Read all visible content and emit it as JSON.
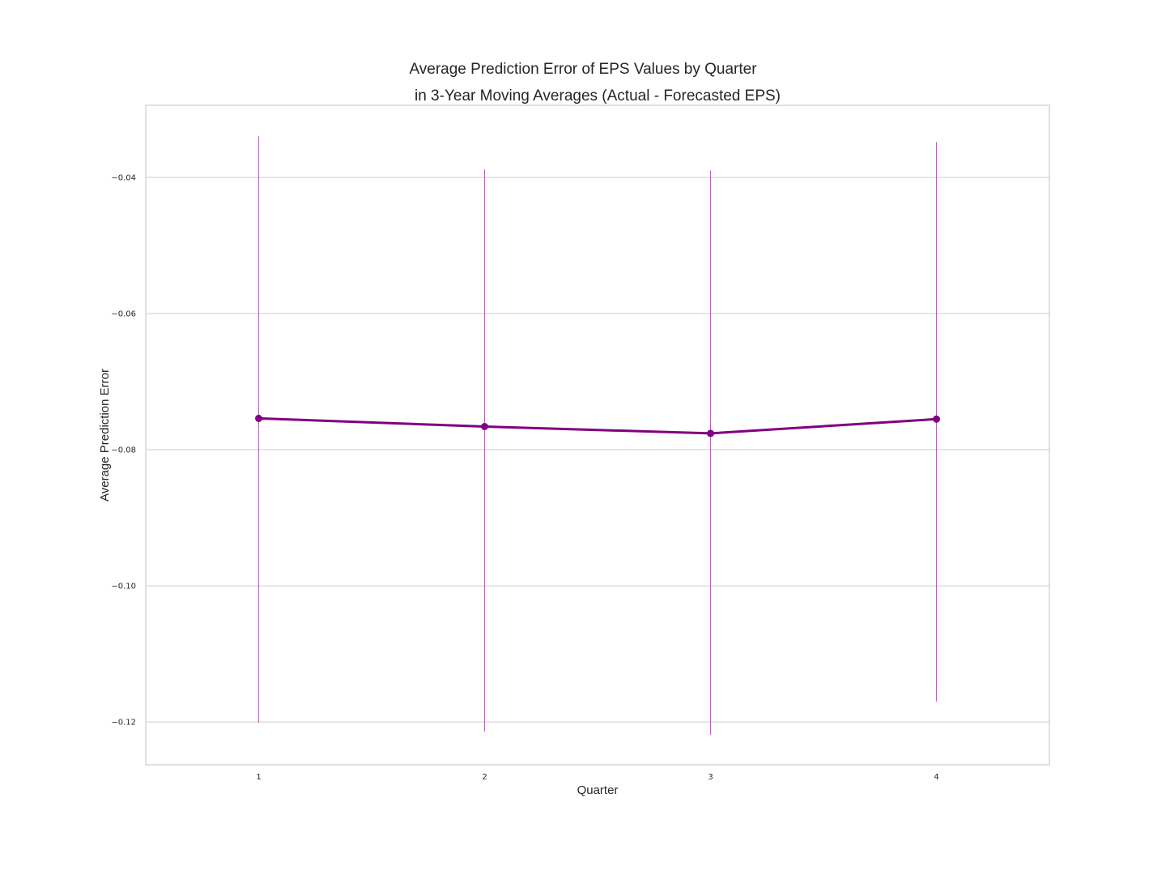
{
  "chart_data": {
    "type": "line",
    "title": "Average Prediction Error of EPS Values by Quarter",
    "subtitle": "in 3-Year Moving Averages (Actual - Forecasted EPS)",
    "xlabel": "Quarter",
    "ylabel": "Average Prediction Error",
    "categories": [
      "1",
      "2",
      "3",
      "4"
    ],
    "series": [
      {
        "values": [
          -0.0754,
          -0.0766,
          -0.0776,
          -0.0755
        ],
        "error_low": [
          -0.1201,
          -0.1214,
          -0.1219,
          -0.117
        ],
        "error_high": [
          -0.0339,
          -0.0388,
          -0.039,
          -0.0348
        ]
      }
    ],
    "yticks": [
      -0.04,
      -0.06,
      -0.08,
      -0.1,
      -0.12
    ],
    "ytick_labels": [
      "−0.04",
      "−0.06",
      "−0.08",
      "−0.10",
      "−0.12"
    ],
    "ylim": [
      -0.1263,
      -0.0294
    ],
    "xlim": [
      0.5,
      4.5
    ],
    "grid": true,
    "line_color": "#800080",
    "grid_color": "#cccccc",
    "frame_color": "#cccccc"
  }
}
